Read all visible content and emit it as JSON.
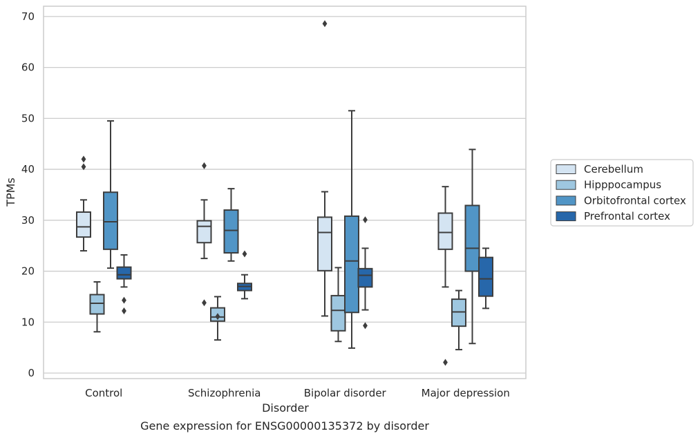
{
  "chart_data": {
    "type": "box",
    "caption": "Gene expression for ENSG00000135372 by disorder",
    "xlabel": "Disorder",
    "ylabel": "TPMs",
    "ylim": [
      -1,
      72
    ],
    "yticks": [
      0,
      10,
      20,
      30,
      40,
      50,
      60,
      70
    ],
    "grid": "horizontal",
    "legend_position": "right",
    "categories": [
      "Control",
      "Schizophrenia",
      "Bipolar disorder",
      "Major depression"
    ],
    "series": [
      {
        "name": "Cerebellum",
        "color": "#d4e4f2",
        "boxes": [
          {
            "whislo": 24.0,
            "q1": 26.7,
            "med": 28.7,
            "q3": 31.6,
            "whishi": 34.0,
            "fliers": [
              40.5,
              42.0
            ]
          },
          {
            "whislo": 22.5,
            "q1": 25.6,
            "med": 28.8,
            "q3": 29.9,
            "whishi": 34.0,
            "fliers": [
              13.8,
              40.7
            ]
          },
          {
            "whislo": 11.2,
            "q1": 20.1,
            "med": 27.6,
            "q3": 30.6,
            "whishi": 35.6,
            "fliers": [
              68.6
            ]
          },
          {
            "whislo": 16.9,
            "q1": 24.3,
            "med": 27.6,
            "q3": 31.4,
            "whishi": 36.6,
            "fliers": [
              2.1
            ]
          }
        ]
      },
      {
        "name": "Hipppocampus",
        "color": "#9ec7e0",
        "boxes": [
          {
            "whislo": 8.1,
            "q1": 11.6,
            "med": 13.7,
            "q3": 15.4,
            "whishi": 17.9,
            "fliers": []
          },
          {
            "whislo": 6.5,
            "q1": 10.2,
            "med": 11.0,
            "q3": 12.8,
            "whishi": 15.0,
            "fliers": [
              11.1
            ]
          },
          {
            "whislo": 6.2,
            "q1": 8.3,
            "med": 12.3,
            "q3": 15.2,
            "whishi": 20.7,
            "fliers": []
          },
          {
            "whislo": 4.6,
            "q1": 9.2,
            "med": 12.0,
            "q3": 14.5,
            "whishi": 16.2,
            "fliers": []
          }
        ]
      },
      {
        "name": "Orbitofrontal cortex",
        "color": "#5195c6",
        "boxes": [
          {
            "whislo": 20.6,
            "q1": 24.3,
            "med": 29.7,
            "q3": 35.5,
            "whishi": 49.5,
            "fliers": []
          },
          {
            "whislo": 22.0,
            "q1": 23.6,
            "med": 28.0,
            "q3": 32.0,
            "whishi": 36.2,
            "fliers": []
          },
          {
            "whislo": 4.9,
            "q1": 11.9,
            "med": 22.0,
            "q3": 30.8,
            "whishi": 51.5,
            "fliers": []
          },
          {
            "whislo": 5.8,
            "q1": 20.0,
            "med": 24.5,
            "q3": 32.9,
            "whishi": 43.9,
            "fliers": []
          }
        ]
      },
      {
        "name": "Prefrontal cortex",
        "color": "#2767aa",
        "boxes": [
          {
            "whislo": 16.9,
            "q1": 18.5,
            "med": 19.3,
            "q3": 20.8,
            "whishi": 23.2,
            "fliers": [
              12.2,
              14.3
            ]
          },
          {
            "whislo": 14.6,
            "q1": 16.2,
            "med": 17.0,
            "q3": 17.6,
            "whishi": 19.3,
            "fliers": [
              23.4
            ]
          },
          {
            "whislo": 12.4,
            "q1": 16.9,
            "med": 19.2,
            "q3": 20.5,
            "whishi": 24.5,
            "fliers": [
              9.3,
              30.1
            ]
          },
          {
            "whislo": 12.7,
            "q1": 15.1,
            "med": 18.5,
            "q3": 22.7,
            "whishi": 24.5,
            "fliers": []
          }
        ]
      }
    ]
  }
}
